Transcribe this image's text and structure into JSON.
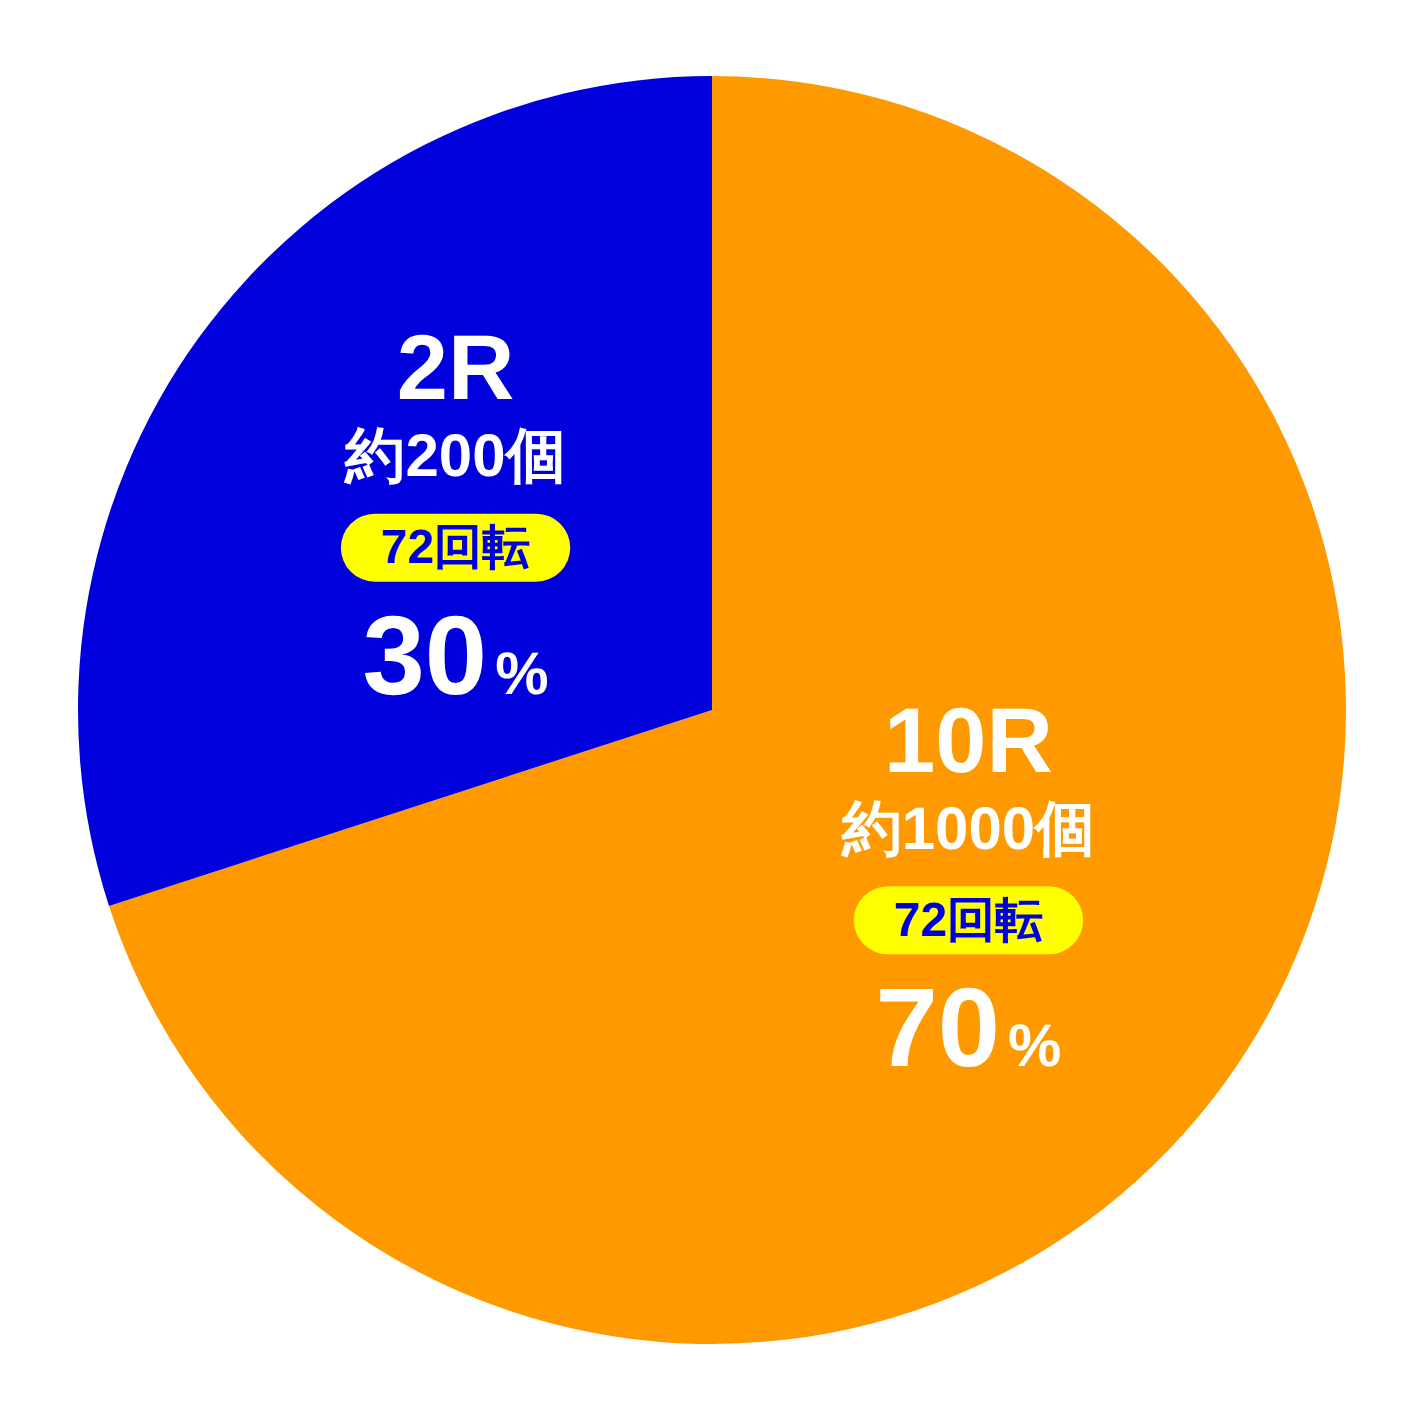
{
  "chart_data": {
    "type": "pie",
    "categories": [
      "10R",
      "2R"
    ],
    "values": [
      70,
      30
    ],
    "colors": [
      "#ff9900",
      "#0000dd"
    ],
    "value_labels": [
      "70%",
      "30%"
    ],
    "legend": false,
    "annotations": [
      {
        "text": "約1000個",
        "x": "10R"
      },
      {
        "text": "72回転",
        "x": "10R"
      },
      {
        "text": "約200個",
        "x": "2R"
      },
      {
        "text": "72回転",
        "x": "2R"
      }
    ]
  }
}
